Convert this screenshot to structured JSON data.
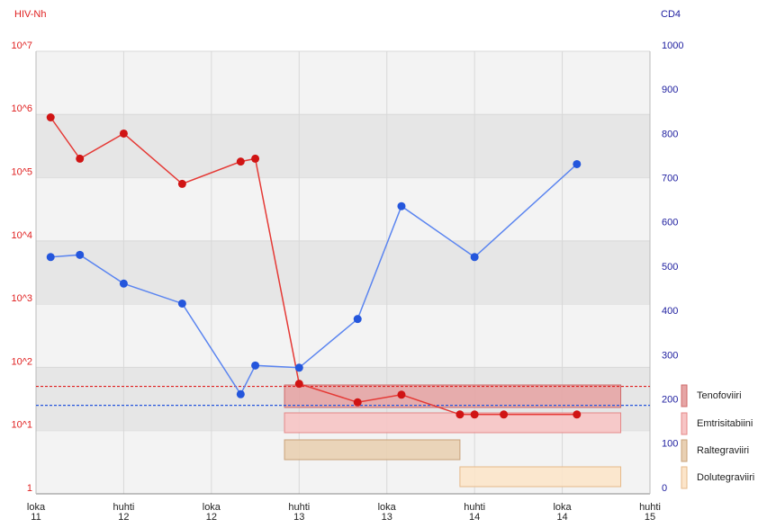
{
  "chart_data": {
    "type": "line",
    "ylabel": "HIV-Nh",
    "y2label": "CD4",
    "ylabel_color": "#e02020",
    "y2label_color": "#2020a0",
    "log_y": true,
    "grid": true,
    "xlim": [
      "2011-10",
      "2015-04"
    ],
    "xticks": [
      {
        "value": "2011-10",
        "label": "loka\n11"
      },
      {
        "value": "2012-04",
        "label": "huhti\n12"
      },
      {
        "value": "2012-10",
        "label": "loka\n12"
      },
      {
        "value": "2013-04",
        "label": "huhti\n13"
      },
      {
        "value": "2013-10",
        "label": "loka\n13"
      },
      {
        "value": "2014-04",
        "label": "huhti\n14"
      },
      {
        "value": "2014-10",
        "label": "loka\n14"
      },
      {
        "value": "2015-04",
        "label": "huhti\n15"
      }
    ],
    "ylim": [
      1,
      10000000
    ],
    "yticks": [
      1,
      {
        "value": 10,
        "label": "10^1"
      },
      {
        "value": 100,
        "label": "10^2"
      },
      {
        "value": 1000,
        "label": "10^3"
      },
      {
        "value": 10000,
        "label": "10^4"
      },
      {
        "value": 100000,
        "label": "10^5"
      },
      {
        "value": 1000000,
        "label": "10^6"
      },
      {
        "value": 10000000,
        "label": "10^7"
      }
    ],
    "y2lim": [
      0,
      1000
    ],
    "y2ticks": [
      0,
      100,
      200,
      300,
      400,
      500,
      600,
      700,
      800,
      900,
      1000
    ],
    "series": [
      {
        "color": "#e53935",
        "marker_color": "#d01414",
        "axis": "y",
        "x": [
          "2011-11",
          "2012-01",
          "2012-04",
          "2012-08",
          "2012-12",
          "2013-01",
          "2013-04",
          "2013-08",
          "2013-11",
          "2014-03",
          "2014-04",
          "2014-06",
          "2014-11"
        ],
        "values": [
          900000,
          200000,
          500000,
          80000,
          180000,
          200000,
          55,
          28,
          37,
          18,
          18,
          18,
          18
        ]
      },
      {
        "color": "#5b85f0",
        "marker_color": "#2456dc",
        "axis": "y2",
        "x": [
          "2011-11",
          "2012-01",
          "2012-04",
          "2012-08",
          "2012-12",
          "2013-01",
          "2013-04",
          "2013-08",
          "2013-11",
          "2014-04",
          "2014-11"
        ],
        "values": [
          535,
          540,
          475,
          430,
          225,
          290,
          285,
          395,
          650,
          535,
          745
        ]
      }
    ],
    "reference_lines": [
      {
        "value": 50,
        "axis": "y",
        "color": "#e02020"
      },
      {
        "value": 200,
        "axis": "y2",
        "color": "#2456dc"
      }
    ],
    "drugs": [
      {
        "name": "Tenofoviiri",
        "start": "2013-03",
        "end": "2015-02",
        "color": "#e6a5a5",
        "border": "#cf6a6a"
      },
      {
        "name": "Emtrisitabiini",
        "start": "2013-03",
        "end": "2015-02",
        "color": "#f7c5c5",
        "border": "#e48888"
      },
      {
        "name": "Raltegraviiri",
        "start": "2013-03",
        "end": "2014-03",
        "color": "#e9d0b3",
        "border": "#c8a27a"
      },
      {
        "name": "Dolutegraviiri",
        "start": "2014-03",
        "end": "2015-02",
        "color": "#fce5ca",
        "border": "#e6b98a"
      }
    ]
  }
}
